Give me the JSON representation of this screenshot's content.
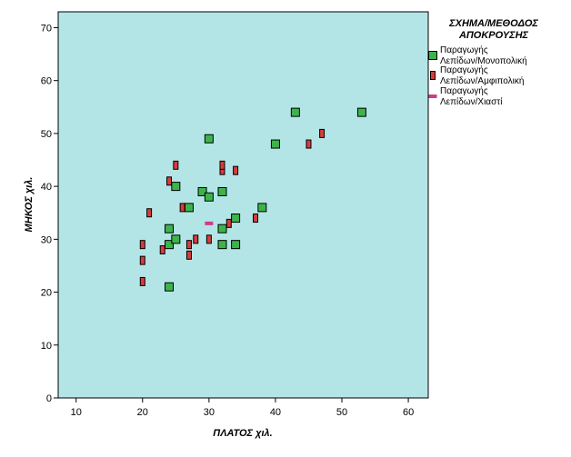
{
  "chart_data": {
    "type": "scatter",
    "title": "",
    "xlabel": "ΠΛΑΤΟΣ χιλ.",
    "ylabel": "ΜΗΚΟΣ χιλ.",
    "xlim": [
      7.3,
      63
    ],
    "ylim": [
      0,
      73
    ],
    "xticks": [
      "10",
      "20",
      "30",
      "40",
      "50",
      "60"
    ],
    "yticks": [
      "0",
      "10",
      "20",
      "30",
      "40",
      "50",
      "60",
      "70"
    ],
    "grid": false,
    "legend_placement": "right",
    "background_color": "#b3e5e7",
    "legend": {
      "title_lines": [
        "ΣΧΗΜΑ/ΜΕΘΟΔΟΣ",
        "ΑΠΟΚΡΟΥΣΗΣ"
      ]
    },
    "series": [
      {
        "name_lines": [
          "Παραγωγής",
          "Λεπίδων/Μονοπολική"
        ],
        "marker": "square",
        "color": "#3cb44b",
        "points": [
          {
            "x": 24,
            "y": 21
          },
          {
            "x": 24,
            "y": 29
          },
          {
            "x": 24,
            "y": 32
          },
          {
            "x": 25,
            "y": 30
          },
          {
            "x": 25,
            "y": 40
          },
          {
            "x": 27,
            "y": 36
          },
          {
            "x": 29,
            "y": 39
          },
          {
            "x": 30,
            "y": 38
          },
          {
            "x": 30,
            "y": 49
          },
          {
            "x": 32,
            "y": 29
          },
          {
            "x": 32,
            "y": 32
          },
          {
            "x": 32,
            "y": 39
          },
          {
            "x": 34,
            "y": 29
          },
          {
            "x": 34,
            "y": 34
          },
          {
            "x": 38,
            "y": 36
          },
          {
            "x": 40,
            "y": 48
          },
          {
            "x": 43,
            "y": 54
          },
          {
            "x": 53,
            "y": 54
          }
        ]
      },
      {
        "name_lines": [
          "Παραγωγής",
          "Λεπίδων/Αμφιπολική"
        ],
        "marker": "rect-vertical",
        "color": "#d63c3c",
        "points": [
          {
            "x": 20,
            "y": 22
          },
          {
            "x": 20,
            "y": 26
          },
          {
            "x": 20,
            "y": 29
          },
          {
            "x": 21,
            "y": 35
          },
          {
            "x": 23,
            "y": 28
          },
          {
            "x": 24,
            "y": 41
          },
          {
            "x": 25,
            "y": 44
          },
          {
            "x": 26,
            "y": 36
          },
          {
            "x": 27,
            "y": 27
          },
          {
            "x": 27,
            "y": 29
          },
          {
            "x": 28,
            "y": 30
          },
          {
            "x": 30,
            "y": 30
          },
          {
            "x": 32,
            "y": 43
          },
          {
            "x": 32,
            "y": 44
          },
          {
            "x": 33,
            "y": 33
          },
          {
            "x": 34,
            "y": 43
          },
          {
            "x": 37,
            "y": 34
          },
          {
            "x": 45,
            "y": 48
          },
          {
            "x": 47,
            "y": 50
          }
        ]
      },
      {
        "name_lines": [
          "Παραγωγής",
          "Λεπίδων/Χιαστί"
        ],
        "marker": "rect-horizontal",
        "color": "#cc3d8a",
        "points": [
          {
            "x": 30,
            "y": 33
          }
        ]
      }
    ]
  }
}
